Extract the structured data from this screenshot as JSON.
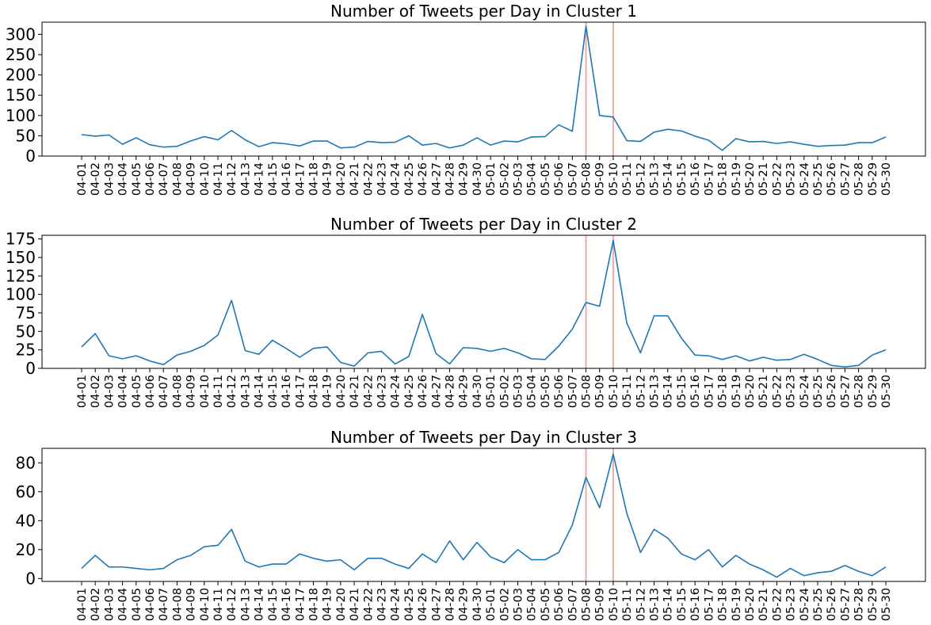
{
  "colors": {
    "series": "#1f77b4",
    "marker_line": "#f08080"
  },
  "chart_data": [
    {
      "type": "line",
      "title": "Number of Tweets per Day in Cluster 1",
      "xlabel": "",
      "ylabel": "",
      "x": [
        "04-01",
        "04-02",
        "04-03",
        "04-04",
        "04-05",
        "04-06",
        "04-07",
        "04-08",
        "04-09",
        "04-10",
        "04-11",
        "04-12",
        "04-13",
        "04-14",
        "04-15",
        "04-16",
        "04-17",
        "04-18",
        "04-19",
        "04-20",
        "04-21",
        "04-22",
        "04-23",
        "04-24",
        "04-25",
        "04-26",
        "04-27",
        "04-28",
        "04-29",
        "04-30",
        "05-01",
        "05-02",
        "05-03",
        "05-04",
        "05-05",
        "05-06",
        "05-07",
        "05-08",
        "05-09",
        "05-10",
        "05-11",
        "05-12",
        "05-13",
        "05-14",
        "05-15",
        "05-16",
        "05-17",
        "05-18",
        "05-19",
        "05-20",
        "05-21",
        "05-22",
        "05-23",
        "05-24",
        "05-25",
        "05-26",
        "05-27",
        "05-28",
        "05-29",
        "05-30"
      ],
      "values": [
        53,
        49,
        52,
        29,
        45,
        28,
        22,
        24,
        37,
        48,
        40,
        63,
        40,
        23,
        33,
        30,
        25,
        37,
        37,
        20,
        22,
        36,
        33,
        34,
        50,
        27,
        31,
        20,
        27,
        45,
        27,
        37,
        35,
        47,
        48,
        77,
        61,
        320,
        100,
        96,
        38,
        36,
        59,
        66,
        62,
        49,
        39,
        14,
        43,
        35,
        36,
        31,
        35,
        29,
        24,
        26,
        27,
        33,
        33,
        47
      ],
      "ylim": [
        0,
        330
      ],
      "yticks": [
        0,
        50,
        100,
        150,
        200,
        250,
        300
      ],
      "reference_lines": [
        "05-08",
        "05-10"
      ],
      "grid": false
    },
    {
      "type": "line",
      "title": "Number of Tweets per Day in Cluster 2",
      "xlabel": "",
      "ylabel": "",
      "x": [
        "04-01",
        "04-02",
        "04-03",
        "04-04",
        "04-05",
        "04-06",
        "04-07",
        "04-08",
        "04-09",
        "04-10",
        "04-11",
        "04-12",
        "04-13",
        "04-14",
        "04-15",
        "04-16",
        "04-17",
        "04-18",
        "04-19",
        "04-20",
        "04-21",
        "04-22",
        "04-23",
        "04-24",
        "04-25",
        "04-26",
        "04-27",
        "04-28",
        "04-29",
        "04-30",
        "05-01",
        "05-02",
        "05-03",
        "05-04",
        "05-05",
        "05-06",
        "05-07",
        "05-08",
        "05-09",
        "05-10",
        "05-11",
        "05-12",
        "05-13",
        "05-14",
        "05-15",
        "05-16",
        "05-17",
        "05-18",
        "05-19",
        "05-20",
        "05-21",
        "05-22",
        "05-23",
        "05-24",
        "05-25",
        "05-26",
        "05-27",
        "05-28",
        "05-29",
        "05-30"
      ],
      "values": [
        29,
        47,
        17,
        13,
        17,
        10,
        5,
        18,
        23,
        31,
        45,
        92,
        24,
        19,
        38,
        27,
        15,
        27,
        29,
        8,
        3,
        21,
        23,
        6,
        16,
        73,
        20,
        6,
        28,
        27,
        23,
        27,
        21,
        13,
        12,
        30,
        53,
        89,
        84,
        173,
        61,
        21,
        71,
        71,
        41,
        18,
        17,
        12,
        17,
        10,
        15,
        11,
        12,
        19,
        12,
        4,
        2,
        4,
        18,
        25
      ],
      "ylim": [
        0,
        180
      ],
      "yticks": [
        0,
        25,
        50,
        75,
        100,
        125,
        150,
        175
      ],
      "reference_lines": [
        "05-08",
        "05-10"
      ],
      "grid": false
    },
    {
      "type": "line",
      "title": "Number of Tweets per Day in Cluster 3",
      "xlabel": "",
      "ylabel": "",
      "x": [
        "04-01",
        "04-02",
        "04-03",
        "04-04",
        "04-05",
        "04-06",
        "04-07",
        "04-08",
        "04-09",
        "04-10",
        "04-11",
        "04-12",
        "04-13",
        "04-14",
        "04-15",
        "04-16",
        "04-17",
        "04-18",
        "04-19",
        "04-20",
        "04-21",
        "04-22",
        "04-23",
        "04-24",
        "04-25",
        "04-26",
        "04-27",
        "04-28",
        "04-29",
        "04-30",
        "05-01",
        "05-02",
        "05-03",
        "05-04",
        "05-05",
        "05-06",
        "05-07",
        "05-08",
        "05-09",
        "05-10",
        "05-11",
        "05-12",
        "05-13",
        "05-14",
        "05-15",
        "05-16",
        "05-17",
        "05-18",
        "05-19",
        "05-20",
        "05-21",
        "05-22",
        "05-23",
        "05-24",
        "05-25",
        "05-26",
        "05-27",
        "05-28",
        "05-29",
        "05-30"
      ],
      "values": [
        7,
        16,
        8,
        8,
        7,
        6,
        7,
        13,
        16,
        22,
        23,
        34,
        12,
        8,
        10,
        10,
        17,
        14,
        12,
        13,
        6,
        14,
        14,
        10,
        7,
        17,
        11,
        26,
        13,
        25,
        15,
        11,
        20,
        13,
        13,
        18,
        37,
        70,
        49,
        86,
        45,
        18,
        34,
        28,
        17,
        13,
        20,
        8,
        16,
        10,
        6,
        1,
        7,
        2,
        4,
        5,
        9,
        5,
        2,
        8
      ],
      "ylim": [
        -2,
        90
      ],
      "yticks": [
        0,
        20,
        40,
        60,
        80
      ],
      "reference_lines": [
        "05-08",
        "05-10"
      ],
      "grid": false
    }
  ]
}
